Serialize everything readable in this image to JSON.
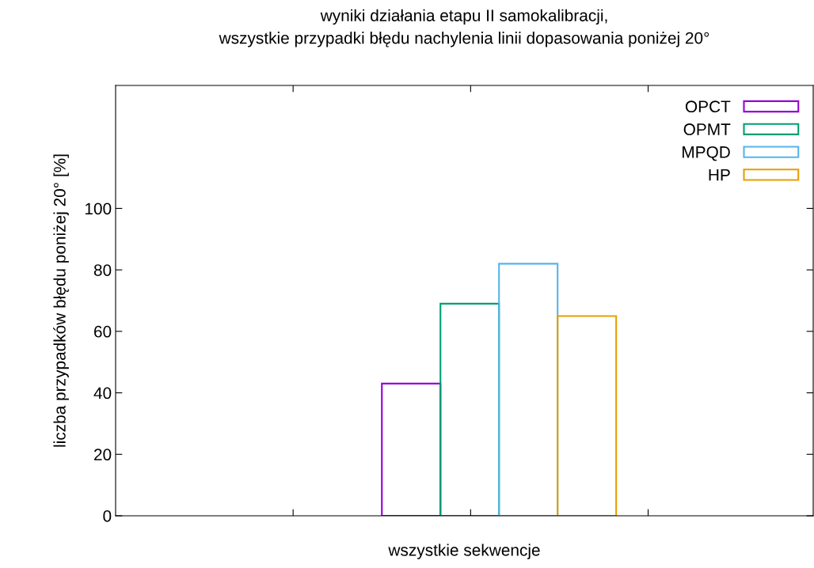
{
  "chart_data": {
    "type": "bar",
    "title": "wyniki działania etapu II samokalibracji,\nwszystkie przypadki błędu nachylenia linii dopasowania poniżej 20°",
    "xlabel": "wszystkie sekwencje",
    "ylabel": "liczba przypadków błędu poniżej 20° [%]",
    "categories": [
      null
    ],
    "series": [
      {
        "name": "OPCT",
        "color": "#9400d3",
        "values": [
          43
        ]
      },
      {
        "name": "OPMT",
        "color": "#009e73",
        "values": [
          69
        ]
      },
      {
        "name": "MPQD",
        "color": "#56b4e9",
        "values": [
          82
        ]
      },
      {
        "name": "HP",
        "color": "#e69f00",
        "values": [
          65
        ]
      }
    ],
    "ylim": [
      0,
      140
    ],
    "yticks": [
      0,
      20,
      40,
      60,
      80,
      100
    ],
    "grid": false,
    "legend": "top right"
  }
}
